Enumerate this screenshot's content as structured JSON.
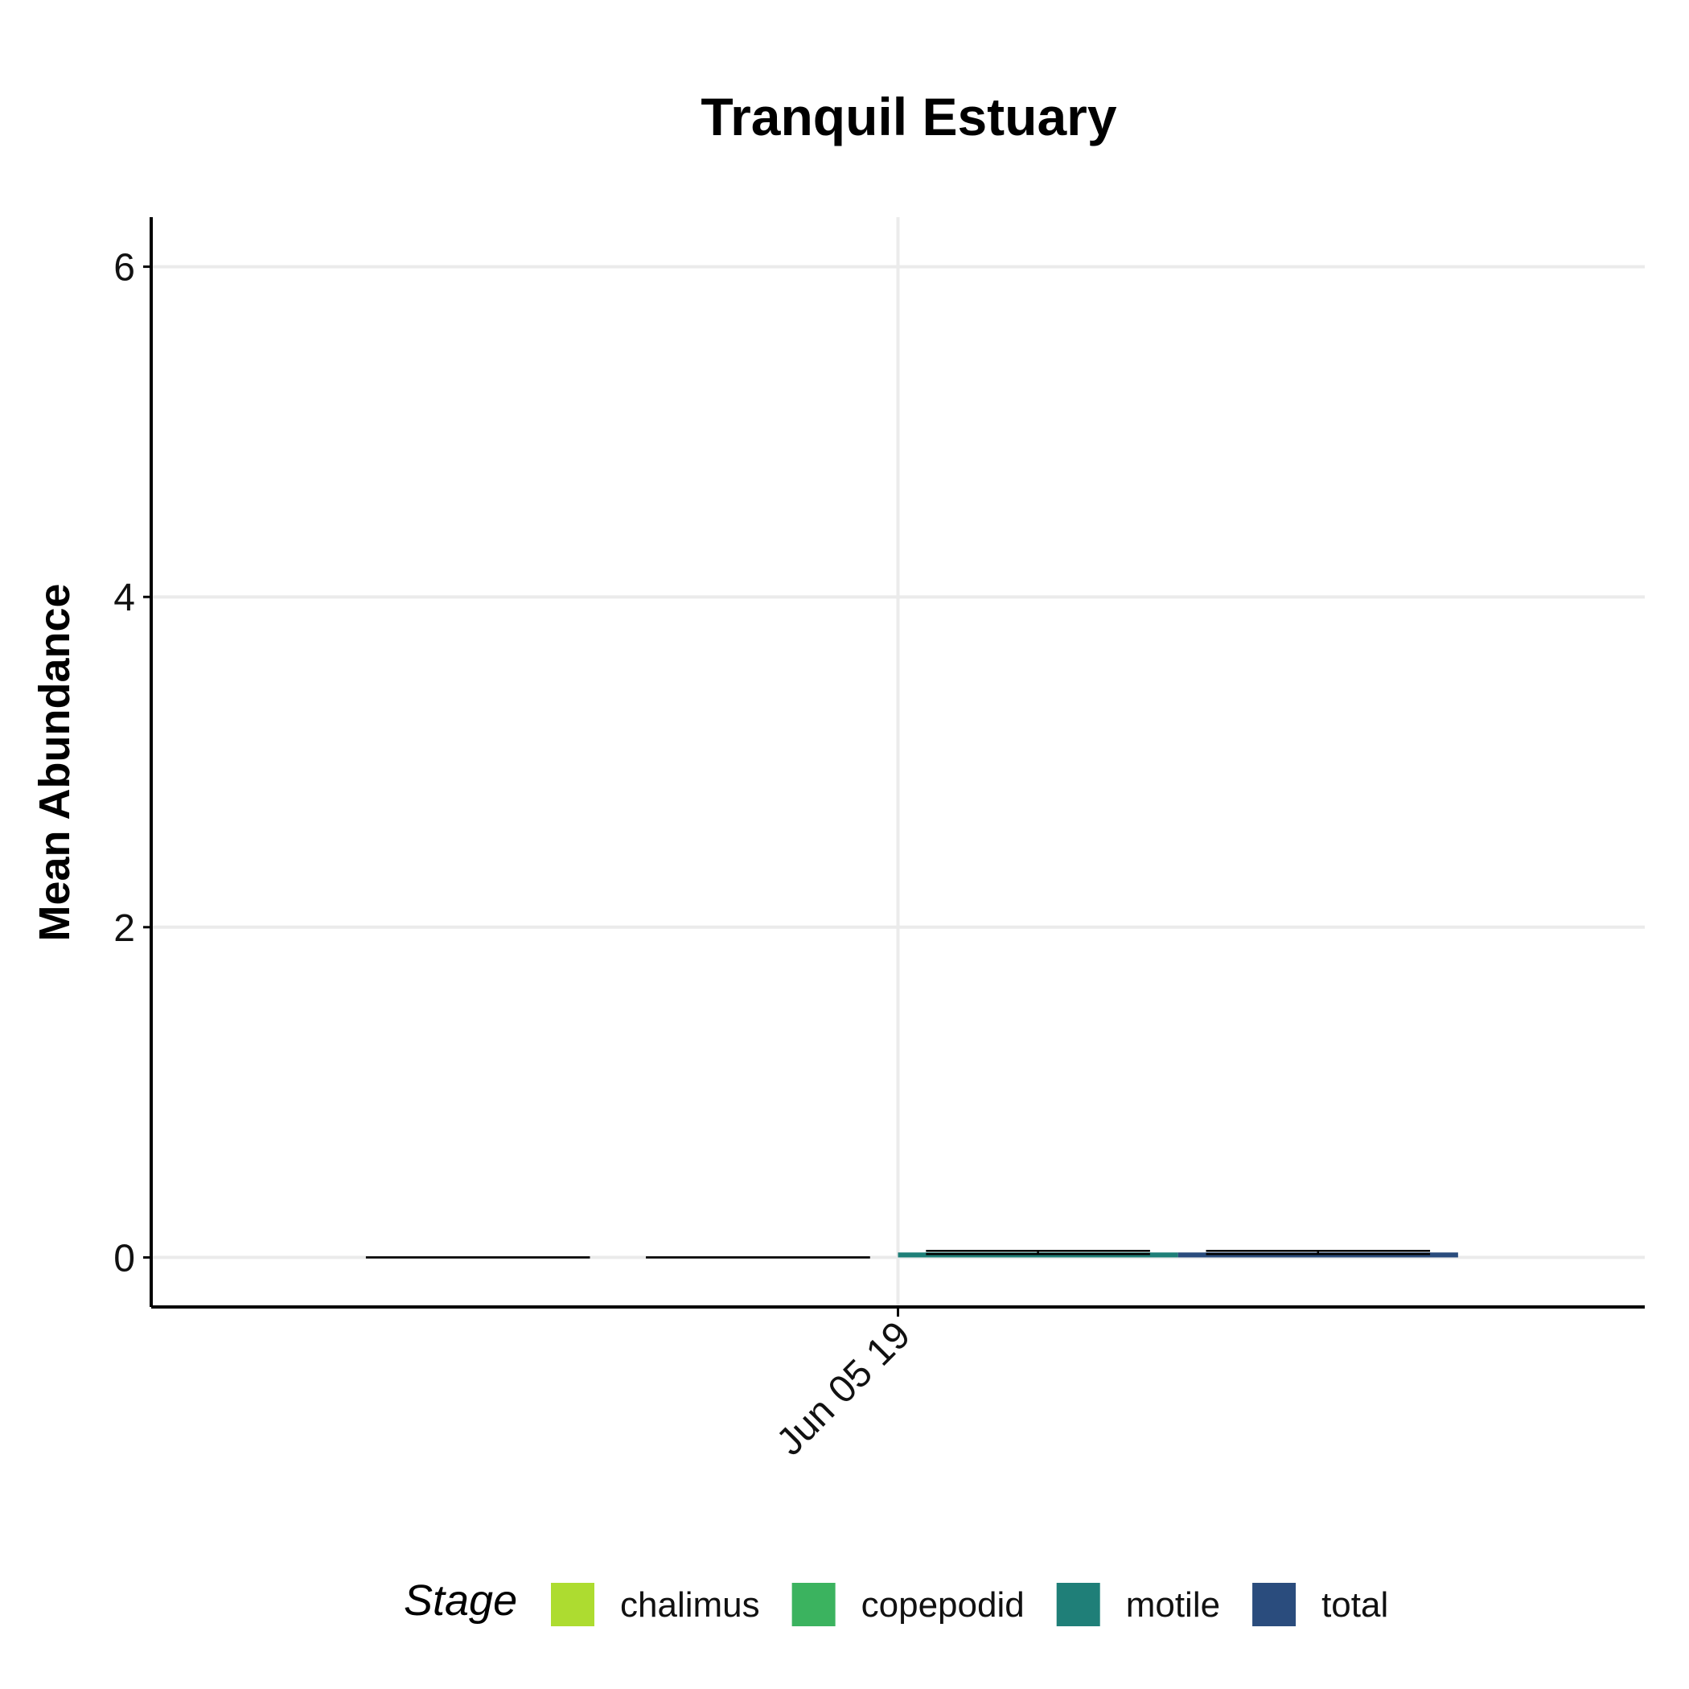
{
  "chart_data": {
    "type": "bar",
    "title": "Tranquil Estuary",
    "xlabel": "",
    "ylabel": "Mean Abundance",
    "categories": [
      "Jun 05 19"
    ],
    "ylim": [
      -0.3,
      6.3
    ],
    "yticks": [
      0,
      2,
      4,
      6
    ],
    "grid": true,
    "legend": {
      "title": "Stage",
      "position": "bottom"
    },
    "series": [
      {
        "name": "chalimus",
        "color": "#addc30",
        "values": [
          0
        ],
        "error": [
          0
        ]
      },
      {
        "name": "copepodid",
        "color": "#3bb35f",
        "values": [
          0
        ],
        "error": [
          0
        ]
      },
      {
        "name": "motile",
        "color": "#1f7f78",
        "values": [
          0.03
        ],
        "error": [
          0.01
        ]
      },
      {
        "name": "total",
        "color": "#2a4c7d",
        "values": [
          0.03
        ],
        "error": [
          0.01
        ]
      }
    ]
  }
}
